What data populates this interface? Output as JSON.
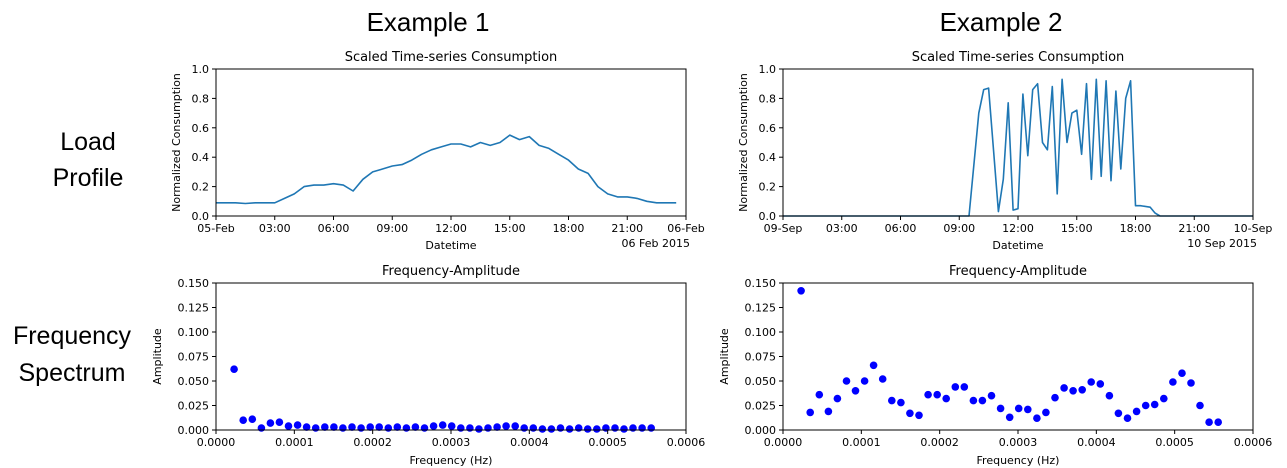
{
  "headings": {
    "col1": "Example 1",
    "col2": "Example 2"
  },
  "row_labels": {
    "load_line1": "Load",
    "load_line2": "Profile",
    "freq_line1": "Frequency",
    "freq_line2": "Spectrum"
  },
  "colors": {
    "series": "#1f77b4",
    "points": "#0000ff"
  },
  "chart_data": [
    {
      "type": "line",
      "title": "Scaled Time-series Consumption",
      "xlabel": "Datetime",
      "ylabel": "Normalized Consumption",
      "date_label": "06 Feb 2015",
      "xlim": [
        0,
        24
      ],
      "ylim": [
        0,
        1.0
      ],
      "x_ticks": [
        0,
        3,
        6,
        9,
        12,
        15,
        18,
        21,
        24
      ],
      "x_tick_labels": [
        "05-Feb",
        "03:00",
        "06:00",
        "09:00",
        "12:00",
        "15:00",
        "18:00",
        "21:00",
        "06-Feb"
      ],
      "y_ticks": [
        0.0,
        0.2,
        0.4,
        0.6,
        0.8,
        1.0
      ],
      "y_tick_labels": [
        "0.0",
        "0.2",
        "0.4",
        "0.6",
        "0.8",
        "1.0"
      ],
      "x": [
        0,
        0.5,
        1,
        1.5,
        2,
        2.5,
        3,
        3.5,
        4,
        4.5,
        5,
        5.5,
        6,
        6.5,
        7,
        7.5,
        8,
        8.5,
        9,
        9.5,
        10,
        10.5,
        11,
        11.5,
        12,
        12.5,
        13,
        13.5,
        14,
        14.5,
        15,
        15.5,
        16,
        16.5,
        17,
        17.5,
        18,
        18.5,
        19,
        19.5,
        20,
        20.5,
        21,
        21.5,
        22,
        22.5,
        23,
        23.5
      ],
      "y": [
        0.09,
        0.09,
        0.09,
        0.085,
        0.09,
        0.09,
        0.09,
        0.12,
        0.15,
        0.2,
        0.21,
        0.21,
        0.22,
        0.21,
        0.17,
        0.25,
        0.3,
        0.32,
        0.34,
        0.35,
        0.38,
        0.42,
        0.45,
        0.47,
        0.49,
        0.49,
        0.47,
        0.5,
        0.48,
        0.5,
        0.55,
        0.52,
        0.54,
        0.48,
        0.46,
        0.42,
        0.38,
        0.32,
        0.29,
        0.2,
        0.15,
        0.13,
        0.13,
        0.12,
        0.1,
        0.09,
        0.09,
        0.09
      ],
      "grid": false
    },
    {
      "type": "line",
      "title": "Scaled Time-series Consumption",
      "xlabel": "Datetime",
      "ylabel": "Normalized Consumption",
      "date_label": "10 Sep 2015",
      "xlim": [
        0,
        24
      ],
      "ylim": [
        0,
        1.0
      ],
      "x_ticks": [
        0,
        3,
        6,
        9,
        12,
        15,
        18,
        21,
        24
      ],
      "x_tick_labels": [
        "09-Sep",
        "03:00",
        "06:00",
        "09:00",
        "12:00",
        "15:00",
        "18:00",
        "21:00",
        "10-Sep"
      ],
      "y_ticks": [
        0.0,
        0.2,
        0.4,
        0.6,
        0.8,
        1.0
      ],
      "y_tick_labels": [
        "0.0",
        "0.2",
        "0.4",
        "0.6",
        "0.8",
        "1.0"
      ],
      "x": [
        0,
        2,
        4,
        6,
        8,
        9.5,
        10,
        10.25,
        10.5,
        10.75,
        11,
        11.25,
        11.5,
        11.75,
        12,
        12.25,
        12.5,
        12.75,
        13,
        13.25,
        13.5,
        13.75,
        14,
        14.25,
        14.5,
        14.75,
        15,
        15.25,
        15.5,
        15.75,
        16,
        16.25,
        16.5,
        16.75,
        17,
        17.25,
        17.5,
        17.75,
        18,
        18.25,
        18.75,
        19,
        19.25,
        20,
        22,
        24
      ],
      "y": [
        0,
        0,
        0,
        0,
        0,
        0,
        0.7,
        0.86,
        0.87,
        0.45,
        0.03,
        0.25,
        0.77,
        0.04,
        0.05,
        0.83,
        0.41,
        0.86,
        0.9,
        0.5,
        0.45,
        0.88,
        0.15,
        0.93,
        0.5,
        0.7,
        0.72,
        0.42,
        0.9,
        0.25,
        0.93,
        0.27,
        0.92,
        0.24,
        0.85,
        0.32,
        0.8,
        0.92,
        0.07,
        0.07,
        0.06,
        0.02,
        0.0,
        0,
        0,
        0
      ],
      "grid": false
    },
    {
      "type": "scatter",
      "title": "Frequency-Amplitude",
      "xlabel": "Frequency (Hz)",
      "ylabel": "Amplitude",
      "xlim": [
        0,
        0.0006
      ],
      "ylim": [
        0,
        0.15
      ],
      "x_ticks": [
        0,
        0.0001,
        0.0002,
        0.0003,
        0.0004,
        0.0005,
        0.0006
      ],
      "x_tick_labels": [
        "0.0000",
        "0.0001",
        "0.0002",
        "0.0003",
        "0.0004",
        "0.0005",
        "0.0006"
      ],
      "y_ticks": [
        0,
        0.025,
        0.05,
        0.075,
        0.1,
        0.125,
        0.15
      ],
      "y_tick_labels": [
        "0.000",
        "0.025",
        "0.050",
        "0.075",
        "0.100",
        "0.125",
        "0.150"
      ],
      "x": [
        2.31e-05,
        3.47e-05,
        4.63e-05,
        5.79e-05,
        6.94e-05,
        8.1e-05,
        9.26e-05,
        0.0001042,
        0.0001157,
        0.0001273,
        0.0001389,
        0.0001505,
        0.000162,
        0.0001736,
        0.0001852,
        0.0001968,
        0.0002083,
        0.0002199,
        0.0002315,
        0.0002431,
        0.0002546,
        0.0002662,
        0.0002778,
        0.0002894,
        0.0003009,
        0.0003125,
        0.0003241,
        0.0003356,
        0.0003472,
        0.0003588,
        0.0003704,
        0.0003819,
        0.0003935,
        0.0004051,
        0.0004167,
        0.0004282,
        0.0004398,
        0.0004514,
        0.000463,
        0.0004745,
        0.0004861,
        0.0004977,
        0.0005093,
        0.0005208,
        0.0005324,
        0.000544,
        0.0005556
      ],
      "y": [
        0.062,
        0.01,
        0.011,
        0.002,
        0.007,
        0.008,
        0.004,
        0.005,
        0.003,
        0.002,
        0.003,
        0.003,
        0.002,
        0.003,
        0.002,
        0.003,
        0.003,
        0.002,
        0.003,
        0.002,
        0.003,
        0.002,
        0.004,
        0.005,
        0.004,
        0.002,
        0.002,
        0.001,
        0.002,
        0.003,
        0.004,
        0.004,
        0.002,
        0.002,
        0.001,
        0.001,
        0.002,
        0.001,
        0.002,
        0.001,
        0.001,
        0.002,
        0.002,
        0.001,
        0.002,
        0.002,
        0.002
      ],
      "grid": false
    },
    {
      "type": "scatter",
      "title": "Frequency-Amplitude",
      "xlabel": "Frequency (Hz)",
      "ylabel": "Amplitude",
      "xlim": [
        0,
        0.0006
      ],
      "ylim": [
        0,
        0.15
      ],
      "x_ticks": [
        0,
        0.0001,
        0.0002,
        0.0003,
        0.0004,
        0.0005,
        0.0006
      ],
      "x_tick_labels": [
        "0.0000",
        "0.0001",
        "0.0002",
        "0.0003",
        "0.0004",
        "0.0005",
        "0.0006"
      ],
      "y_ticks": [
        0,
        0.025,
        0.05,
        0.075,
        0.1,
        0.125,
        0.15
      ],
      "y_tick_labels": [
        "0.000",
        "0.025",
        "0.050",
        "0.075",
        "0.100",
        "0.125",
        "0.150"
      ],
      "x": [
        2.31e-05,
        3.47e-05,
        4.63e-05,
        5.79e-05,
        6.94e-05,
        8.1e-05,
        9.26e-05,
        0.0001042,
        0.0001157,
        0.0001273,
        0.0001389,
        0.0001505,
        0.000162,
        0.0001736,
        0.0001852,
        0.0001968,
        0.0002083,
        0.0002199,
        0.0002315,
        0.0002431,
        0.0002546,
        0.0002662,
        0.0002778,
        0.0002894,
        0.0003009,
        0.0003125,
        0.0003241,
        0.0003356,
        0.0003472,
        0.0003588,
        0.0003704,
        0.0003819,
        0.0003935,
        0.0004051,
        0.0004167,
        0.0004282,
        0.0004398,
        0.0004514,
        0.000463,
        0.0004745,
        0.0004861,
        0.0004977,
        0.0005093,
        0.0005208,
        0.0005324,
        0.000544,
        0.0005556
      ],
      "y": [
        0.142,
        0.018,
        0.036,
        0.019,
        0.032,
        0.05,
        0.04,
        0.05,
        0.066,
        0.052,
        0.03,
        0.028,
        0.017,
        0.015,
        0.036,
        0.036,
        0.032,
        0.044,
        0.044,
        0.03,
        0.03,
        0.035,
        0.022,
        0.013,
        0.022,
        0.021,
        0.012,
        0.018,
        0.033,
        0.043,
        0.04,
        0.041,
        0.049,
        0.047,
        0.035,
        0.017,
        0.012,
        0.019,
        0.025,
        0.026,
        0.032,
        0.049,
        0.058,
        0.048,
        0.025,
        0.008,
        0.008
      ],
      "grid": false
    }
  ]
}
